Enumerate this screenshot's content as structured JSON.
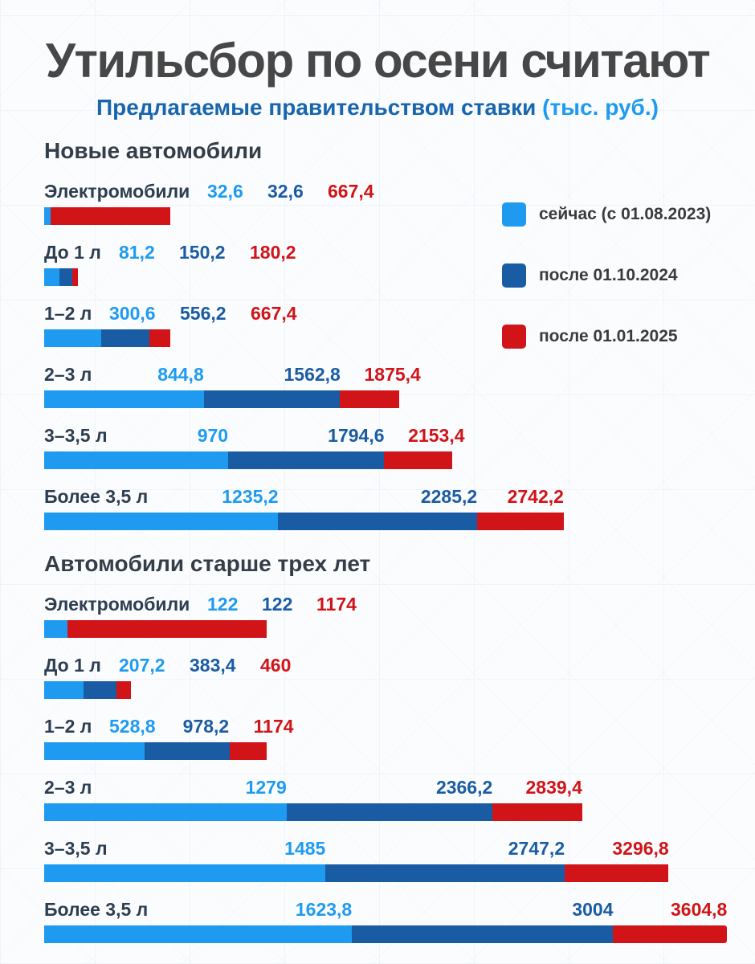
{
  "title": "Утильсбор по осени считают",
  "subtitle": "Предлагаемые правительством ставки",
  "subtitle_unit": "(тыс. руб.)",
  "colors": {
    "now": "#1e9bf0",
    "mid": "#1a5ca3",
    "late": "#d01418",
    "title": "#474747",
    "subtitle": "#1866ae",
    "heading": "#343e49",
    "category": "#2c3e50",
    "legend_text": "#3b3b3b"
  },
  "legend": [
    {
      "label": "сейчас (с 01.08.2023)",
      "color": "#1e9bf0"
    },
    {
      "label": "после 01.10.2024",
      "color": "#1a5ca3"
    },
    {
      "label": "после 01.01.2025",
      "color": "#d01418"
    }
  ],
  "chart_data": {
    "type": "bar",
    "orientation": "horizontal",
    "title": "Утильсбор по осени считают",
    "subtitle": "Предлагаемые правительством ставки (тыс. руб.)",
    "unit": "тыс. руб.",
    "series_names": [
      "сейчас (с 01.08.2023)",
      "после 01.10.2024",
      "после 01.01.2025"
    ],
    "max_value": 3604.8,
    "legend_position": "top-right",
    "grid": false,
    "sections": [
      {
        "heading": "Новые автомобили",
        "rows": [
          {
            "category": "Электромобили",
            "values": [
              32.6,
              32.6,
              667.4
            ],
            "labels": [
              "32,6",
              "32,6",
              "667,4"
            ]
          },
          {
            "category": "До 1 л",
            "values": [
              81.2,
              150.2,
              180.2
            ],
            "labels": [
              "81,2",
              "150,2",
              "180,2"
            ]
          },
          {
            "category": "1–2 л",
            "values": [
              300.6,
              556.2,
              667.4
            ],
            "labels": [
              "300,6",
              "556,2",
              "667,4"
            ]
          },
          {
            "category": "2–3 л",
            "values": [
              844.8,
              1562.8,
              1875.4
            ],
            "labels": [
              "844,8",
              "1562,8",
              "1875,4"
            ]
          },
          {
            "category": "3–3,5 л",
            "values": [
              970,
              1794.6,
              2153.4
            ],
            "labels": [
              "970",
              "1794,6",
              "2153,4"
            ]
          },
          {
            "category": "Более 3,5 л",
            "values": [
              1235.2,
              2285.2,
              2742.2
            ],
            "labels": [
              "1235,2",
              "2285,2",
              "2742,2"
            ]
          }
        ]
      },
      {
        "heading": "Автомобили старше трех лет",
        "rows": [
          {
            "category": "Электромобили",
            "values": [
              122,
              122,
              1174
            ],
            "labels": [
              "122",
              "122",
              "1174"
            ]
          },
          {
            "category": "До 1 л",
            "values": [
              207.2,
              383.4,
              460
            ],
            "labels": [
              "207,2",
              "383,4",
              "460"
            ]
          },
          {
            "category": "1–2 л",
            "values": [
              528.8,
              978.2,
              1174
            ],
            "labels": [
              "528,8",
              "978,2",
              "1174"
            ]
          },
          {
            "category": "2–3 л",
            "values": [
              1279,
              2366.2,
              2839.4
            ],
            "labels": [
              "1279",
              "2366,2",
              "2839,4"
            ]
          },
          {
            "category": "3–3,5 л",
            "values": [
              1485,
              2747.2,
              3296.8
            ],
            "labels": [
              "1485",
              "2747,2",
              "3296,8"
            ]
          },
          {
            "category": "Более 3,5 л",
            "values": [
              1623.8,
              3004,
              3604.8
            ],
            "labels": [
              "1623,8",
              "3004",
              "3604,8"
            ]
          }
        ]
      }
    ]
  }
}
